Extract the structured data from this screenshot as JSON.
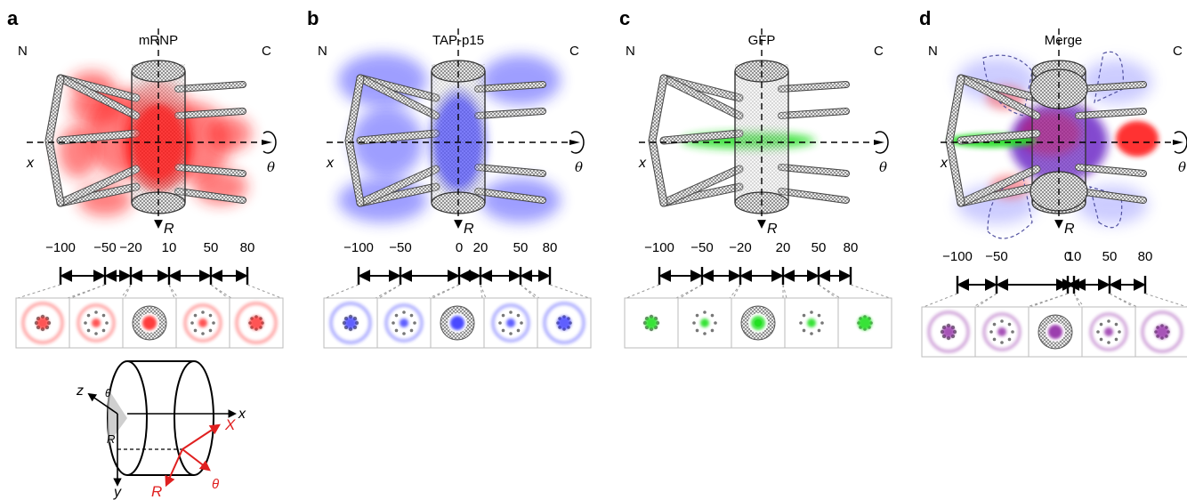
{
  "panels": [
    {
      "letter": "a",
      "title": "mRNP",
      "n_label": "N",
      "c_label": "C",
      "x_axis": "x",
      "r_axis": "R",
      "theta": "θ",
      "ticks": [
        "−100",
        "−50",
        "−20",
        "10",
        "50",
        "80"
      ],
      "signal_color": "#ff1a1a",
      "signal": "red"
    },
    {
      "letter": "b",
      "title": "TAP-p15",
      "n_label": "N",
      "c_label": "C",
      "x_axis": "x",
      "r_axis": "R",
      "theta": "θ",
      "ticks": [
        "−100",
        "−50",
        "0",
        "20",
        "50",
        "80"
      ],
      "signal_color": "#2a2aff",
      "signal": "blue"
    },
    {
      "letter": "c",
      "title": "GFP",
      "n_label": "N",
      "c_label": "C",
      "x_axis": "x",
      "r_axis": "R",
      "theta": "θ",
      "ticks": [
        "−100",
        "−50",
        "−20",
        "20",
        "50",
        "80"
      ],
      "signal_color": "#20e020",
      "signal": "green"
    },
    {
      "letter": "d",
      "title": "Merge",
      "n_label": "N",
      "c_label": "C",
      "x_axis": "x",
      "r_axis": "R",
      "theta": "θ",
      "ticks": [
        "−100",
        "−50",
        "0",
        "10",
        "50",
        "80"
      ],
      "signal_color": "#8a1aa0",
      "signal": "merge"
    }
  ],
  "coordinate_sketch": {
    "z": "z",
    "y": "y",
    "x": "x",
    "theta_small": "θ",
    "r_small": "R",
    "X_red": "X",
    "R_red": "R",
    "theta_red": "θ"
  }
}
